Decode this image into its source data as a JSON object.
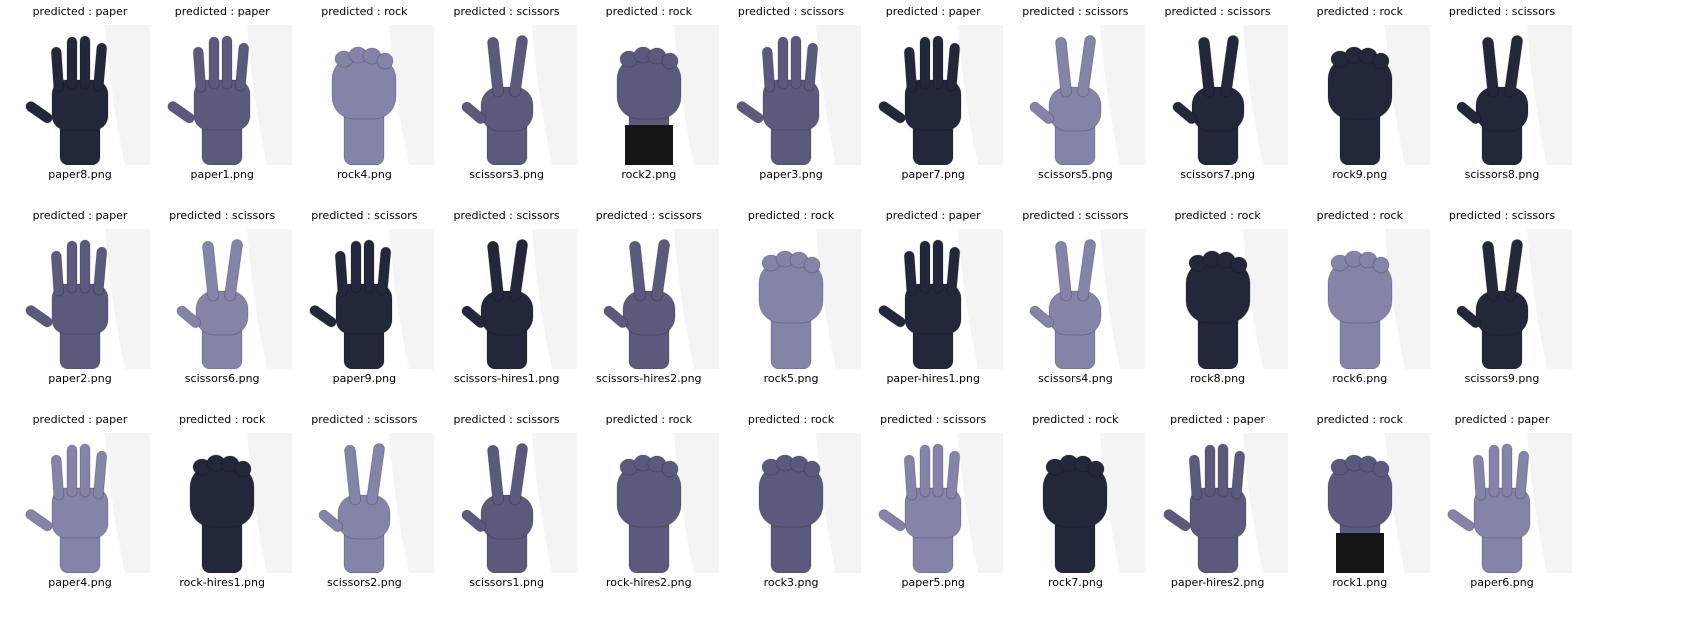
{
  "items": [
    {
      "predicted": "predicted : paper",
      "filename": "paper8.png",
      "gesture": "paper",
      "tone": "dark"
    },
    {
      "predicted": "predicted : paper",
      "filename": "paper1.png",
      "gesture": "paper",
      "tone": "mid"
    },
    {
      "predicted": "predicted : rock",
      "filename": "rock4.png",
      "gesture": "rock",
      "tone": "light"
    },
    {
      "predicted": "predicted : scissors",
      "filename": "scissors3.png",
      "gesture": "scissors",
      "tone": "mid"
    },
    {
      "predicted": "predicted : rock",
      "filename": "rock2.png",
      "gesture": "rock",
      "tone": "mid",
      "sleeve": true
    },
    {
      "predicted": "predicted : scissors",
      "filename": "paper3.png",
      "gesture": "paper",
      "tone": "mid"
    },
    {
      "predicted": "predicted : paper",
      "filename": "paper7.png",
      "gesture": "paper",
      "tone": "dark"
    },
    {
      "predicted": "predicted : scissors",
      "filename": "scissors5.png",
      "gesture": "scissors",
      "tone": "light"
    },
    {
      "predicted": "predicted : scissors",
      "filename": "scissors7.png",
      "gesture": "scissors",
      "tone": "dark"
    },
    {
      "predicted": "predicted : rock",
      "filename": "rock9.png",
      "gesture": "rock",
      "tone": "dark"
    },
    {
      "predicted": "predicted : scissors",
      "filename": "scissors8.png",
      "gesture": "scissors",
      "tone": "dark"
    },
    {
      "predicted": "predicted : paper",
      "filename": "paper2.png",
      "gesture": "paper",
      "tone": "mid"
    },
    {
      "predicted": "predicted : scissors",
      "filename": "scissors6.png",
      "gesture": "scissors",
      "tone": "light"
    },
    {
      "predicted": "predicted : scissors",
      "filename": "paper9.png",
      "gesture": "paper",
      "tone": "dark"
    },
    {
      "predicted": "predicted : scissors",
      "filename": "scissors-hires1.png",
      "gesture": "scissors",
      "tone": "dark"
    },
    {
      "predicted": "predicted : scissors",
      "filename": "scissors-hires2.png",
      "gesture": "scissors",
      "tone": "mid"
    },
    {
      "predicted": "predicted : rock",
      "filename": "rock5.png",
      "gesture": "rock",
      "tone": "light"
    },
    {
      "predicted": "predicted : paper",
      "filename": "paper-hires1.png",
      "gesture": "paper",
      "tone": "dark"
    },
    {
      "predicted": "predicted : scissors",
      "filename": "scissors4.png",
      "gesture": "scissors",
      "tone": "light"
    },
    {
      "predicted": "predicted : rock",
      "filename": "rock8.png",
      "gesture": "rock",
      "tone": "dark"
    },
    {
      "predicted": "predicted : rock",
      "filename": "rock6.png",
      "gesture": "rock",
      "tone": "light"
    },
    {
      "predicted": "predicted : scissors",
      "filename": "scissors9.png",
      "gesture": "scissors",
      "tone": "dark"
    },
    {
      "predicted": "predicted : paper",
      "filename": "paper4.png",
      "gesture": "paper",
      "tone": "light"
    },
    {
      "predicted": "predicted : rock",
      "filename": "rock-hires1.png",
      "gesture": "rock",
      "tone": "dark"
    },
    {
      "predicted": "predicted : scissors",
      "filename": "scissors2.png",
      "gesture": "scissors",
      "tone": "light"
    },
    {
      "predicted": "predicted : scissors",
      "filename": "scissors1.png",
      "gesture": "scissors",
      "tone": "mid"
    },
    {
      "predicted": "predicted : rock",
      "filename": "rock-hires2.png",
      "gesture": "rock",
      "tone": "mid"
    },
    {
      "predicted": "predicted : rock",
      "filename": "rock3.png",
      "gesture": "rock",
      "tone": "mid"
    },
    {
      "predicted": "predicted : scissors",
      "filename": "paper5.png",
      "gesture": "paper",
      "tone": "light"
    },
    {
      "predicted": "predicted : rock",
      "filename": "rock7.png",
      "gesture": "rock",
      "tone": "dark"
    },
    {
      "predicted": "predicted : paper",
      "filename": "paper-hires2.png",
      "gesture": "paper",
      "tone": "mid"
    },
    {
      "predicted": "predicted : rock",
      "filename": "rock1.png",
      "gesture": "rock",
      "tone": "mid",
      "sleeve": true
    },
    {
      "predicted": "predicted : paper",
      "filename": "paper6.png",
      "gesture": "paper",
      "tone": "light"
    }
  ],
  "colors": {
    "dark": "#23273a",
    "mid": "#5b5a7c",
    "light": "#8483a8",
    "sleeve": "#151515",
    "background": "#f4f4f5"
  }
}
